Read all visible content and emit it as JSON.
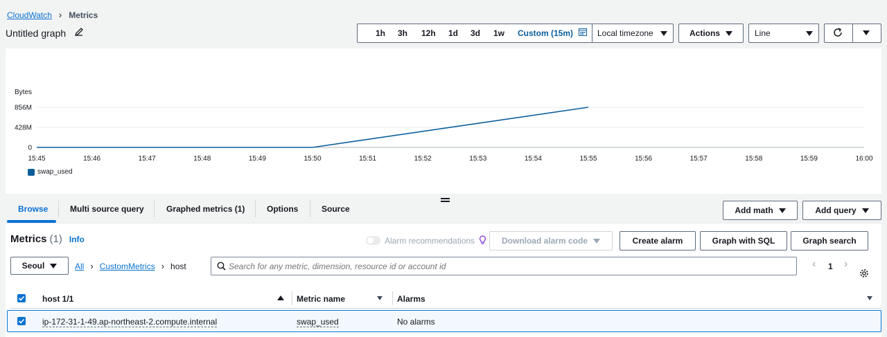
{
  "breadcrumb": {
    "root": "CloudWatch",
    "current": "Metrics"
  },
  "graph": {
    "title": "Untitled graph"
  },
  "time_ranges": [
    "1h",
    "3h",
    "12h",
    "1d",
    "3d",
    "1w"
  ],
  "custom_range": "Custom (15m)",
  "timezone": "Local timezone",
  "actions_label": "Actions",
  "chart_type_select": "Line",
  "chart_data": {
    "type": "line",
    "ylabel": "Bytes",
    "y_ticks": [
      "856M",
      "428M",
      "0"
    ],
    "ylim": [
      0,
      856
    ],
    "x_ticks": [
      "15:45",
      "15:46",
      "15:47",
      "15:48",
      "15:49",
      "15:50",
      "15:51",
      "15:52",
      "15:53",
      "15:54",
      "15:55",
      "15:56",
      "15:57",
      "15:58",
      "15:59",
      "16:00"
    ],
    "series": [
      {
        "name": "swap_used",
        "color": "#0b5e9b",
        "x": [
          "15:45",
          "15:50",
          "15:55"
        ],
        "y": [
          0,
          0,
          856
        ]
      }
    ],
    "grid": true,
    "legend": "bottom-left"
  },
  "tabs": [
    {
      "label": "Browse"
    },
    {
      "label": "Multi source query"
    },
    {
      "label": "Graphed metrics (1)"
    },
    {
      "label": "Options"
    },
    {
      "label": "Source"
    }
  ],
  "add_math": "Add math",
  "add_query": "Add query",
  "metrics": {
    "title": "Metrics",
    "count": "(1)",
    "info": "Info"
  },
  "alarm_recommendations": "Alarm recommendations",
  "download_alarm_code": "Download alarm code",
  "create_alarm": "Create alarm",
  "graph_with_sql": "Graph with SQL",
  "graph_search": "Graph search",
  "region": "Seoul",
  "path": {
    "all": "All",
    "namespace": "CustomMetrics",
    "dimension": "host"
  },
  "search": {
    "placeholder": "Search for any metric, dimension, resource id or account id"
  },
  "pagination": {
    "page": "1"
  },
  "table": {
    "headers": {
      "host": "host 1/1",
      "metric_name": "Metric name",
      "alarms": "Alarms"
    },
    "rows": [
      {
        "host": "ip-172-31-1-49.ap-northeast-2.compute.internal",
        "metric_name": "swap_used",
        "alarms": "No alarms"
      }
    ]
  },
  "colors": {
    "accent": "#0972d3",
    "series": "#0b5e9b",
    "selected_row_bg": "#f2f8fd"
  }
}
